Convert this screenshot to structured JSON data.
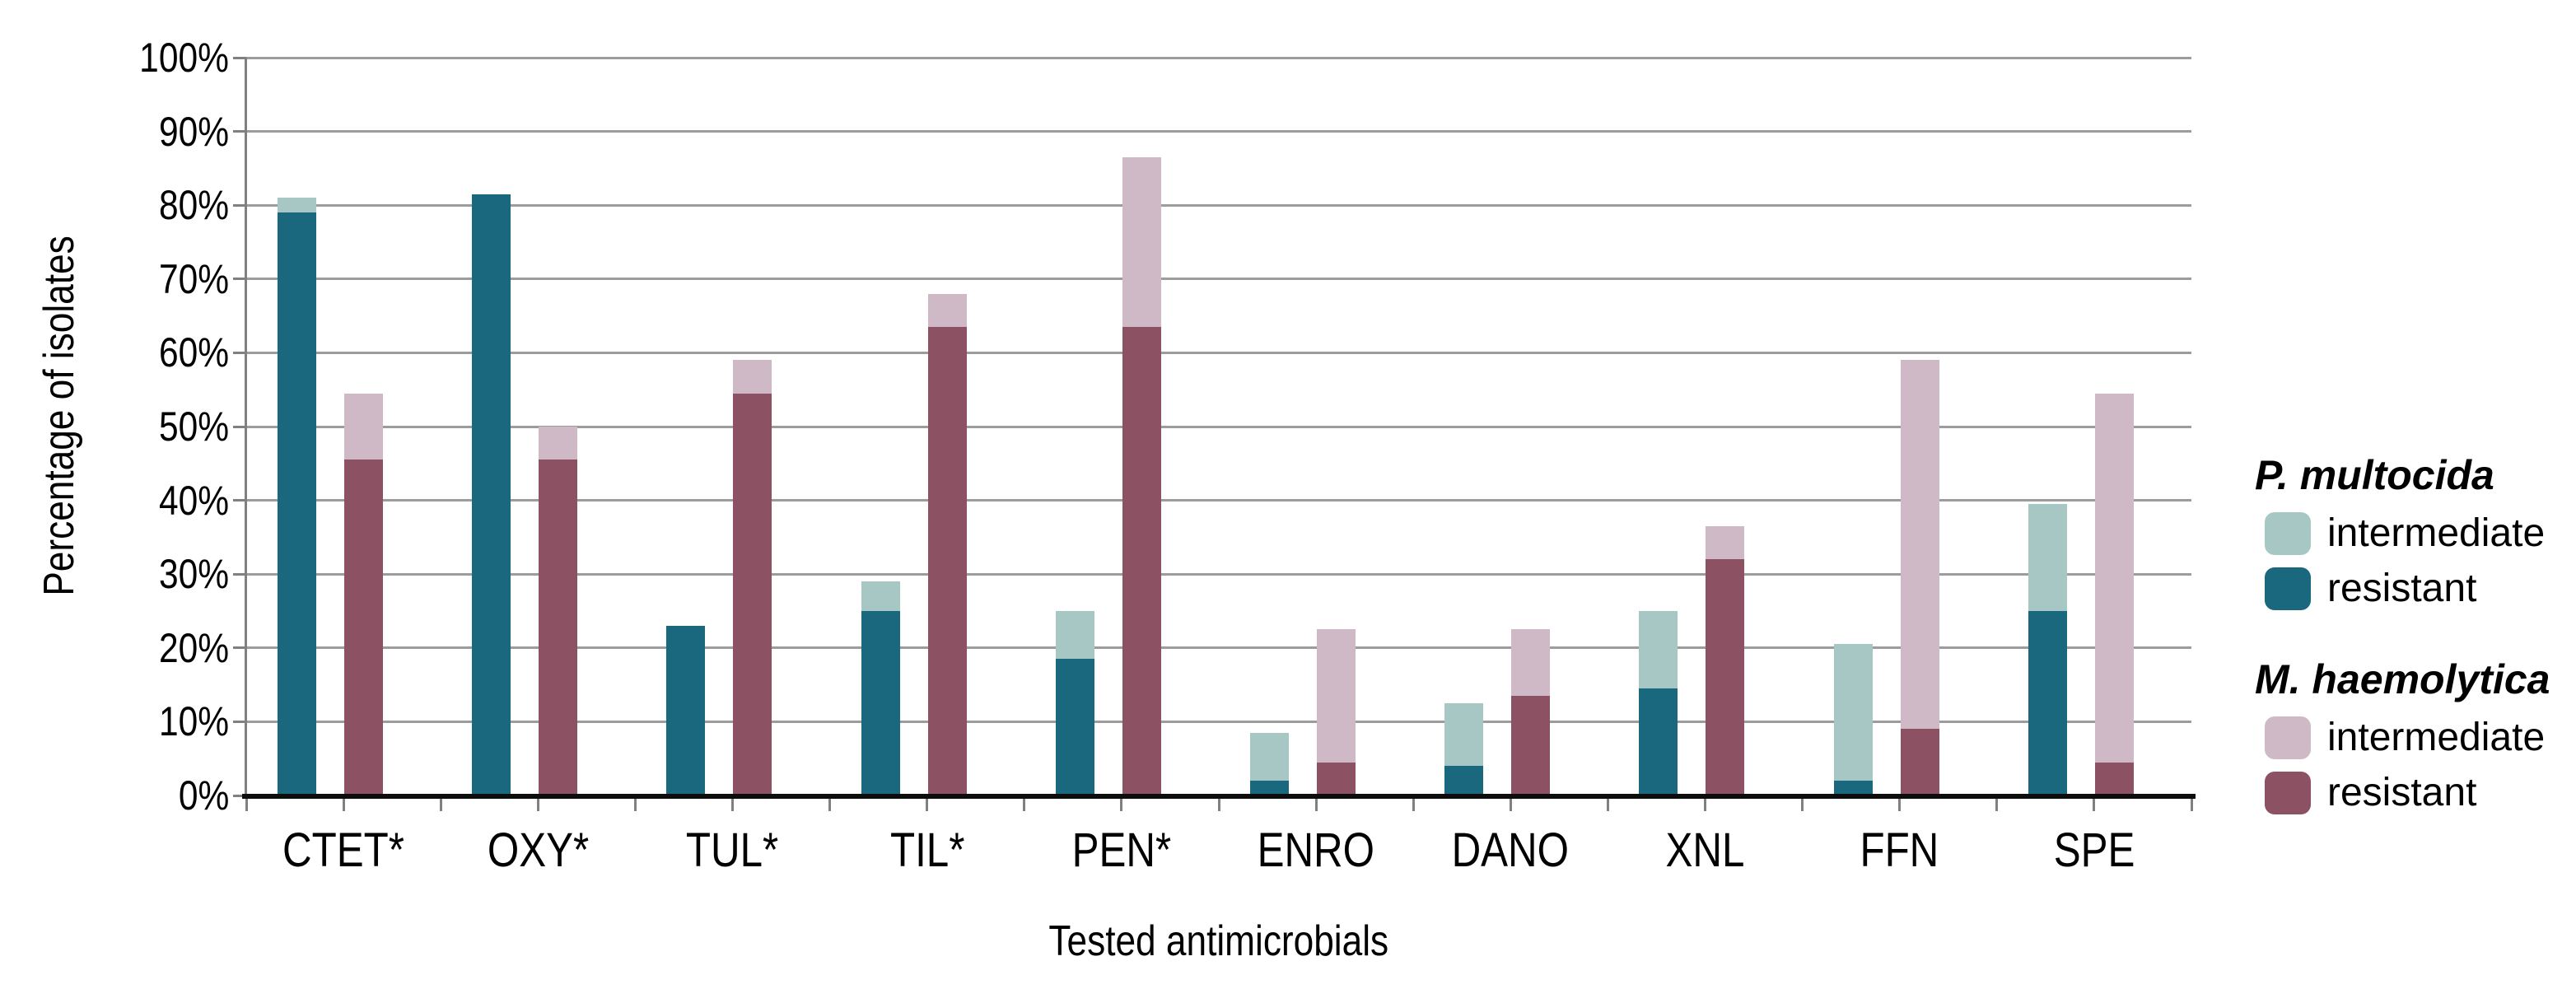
{
  "chart_data": {
    "type": "bar",
    "subtype": "grouped-stacked-column",
    "title": "",
    "xlabel": "Tested antimicrobials",
    "ylabel": "Percentage of isolates",
    "ylim": [
      0,
      100
    ],
    "ytick_step": 10,
    "ytick_labels": [
      "0%",
      "10%",
      "20%",
      "30%",
      "40%",
      "50%",
      "60%",
      "70%",
      "80%",
      "90%",
      "100%"
    ],
    "grid": true,
    "legend_position": "right",
    "categories": [
      "CTET*",
      "OXY*",
      "TUL*",
      "TIL*",
      "PEN*",
      "ENRO",
      "DANO",
      "XNL",
      "FFN",
      "SPE"
    ],
    "group_order": [
      "P. multocida",
      "M. haemolytica"
    ],
    "stack_order": [
      "resistant",
      "intermediate"
    ],
    "series": [
      {
        "name": "P. multocida resistant",
        "group": 0,
        "segment": "resistant",
        "color": "#1A687D",
        "values": [
          79,
          81.5,
          23,
          25,
          18.5,
          2,
          4,
          14.5,
          2,
          25
        ]
      },
      {
        "name": "P. multocida intermediate",
        "group": 0,
        "segment": "intermediate",
        "color": "#A7C7C4",
        "values": [
          2,
          0,
          0,
          4,
          6.5,
          6.5,
          8.5,
          10.5,
          18.5,
          14.5
        ]
      },
      {
        "name": "M. haemolytica resistant",
        "group": 1,
        "segment": "resistant",
        "color": "#8C5162",
        "values": [
          45.5,
          45.5,
          54.5,
          63.5,
          63.5,
          4.5,
          13.5,
          32,
          9,
          4.5
        ]
      },
      {
        "name": "M. haemolytica intermediate",
        "group": 1,
        "segment": "intermediate",
        "color": "#CFB9C6",
        "values": [
          9,
          4.5,
          4.5,
          4.5,
          23,
          18,
          9,
          4.5,
          50,
          50
        ]
      }
    ]
  },
  "legend": {
    "groups": [
      {
        "title": "P. multocida",
        "items": [
          {
            "label": "intermediate",
            "color": "#A7C7C4"
          },
          {
            "label": "resistant",
            "color": "#1A687D"
          }
        ]
      },
      {
        "title": "M. haemolytica",
        "items": [
          {
            "label": "intermediate",
            "color": "#CFB9C6"
          },
          {
            "label": "resistant",
            "color": "#8C5162"
          }
        ]
      }
    ]
  },
  "style_colors": {
    "gridline": "#9c9c9c",
    "y_axis_line": "#808080",
    "x_axis_line": "#0d0d0d",
    "tick": "#808080",
    "text": "#000000",
    "background": "#ffffff"
  }
}
